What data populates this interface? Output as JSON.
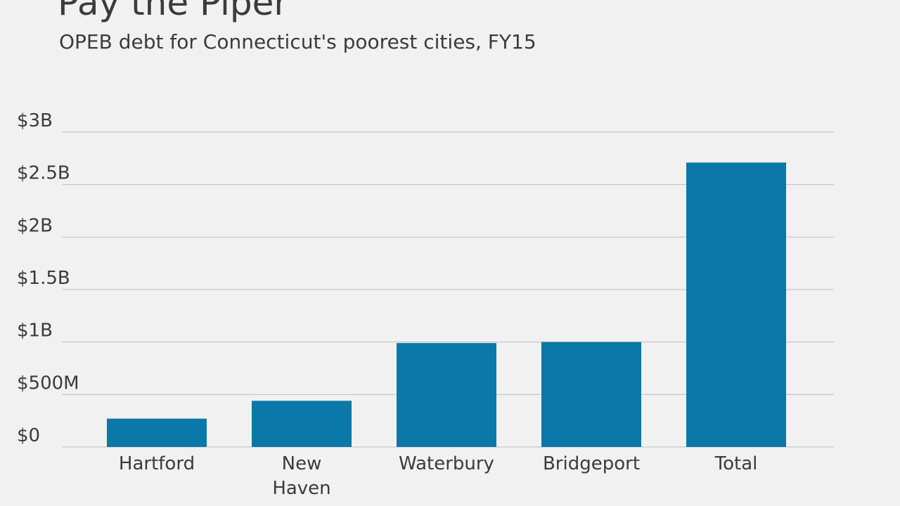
{
  "chart_data": {
    "type": "bar",
    "title": "Pay the Piper",
    "subtitle": "OPEB debt for Connecticut's poorest cities, FY15",
    "categories": [
      "Hartford",
      "New Haven",
      "Waterbury",
      "Bridgeport",
      "Total"
    ],
    "category_lines": [
      [
        "Hartford"
      ],
      [
        "New",
        "Haven"
      ],
      [
        "Waterbury"
      ],
      [
        "Bridgeport"
      ],
      [
        "Total"
      ]
    ],
    "values": [
      0.27,
      0.44,
      0.99,
      1.0,
      2.71
    ],
    "value_unit": "billion USD",
    "ylim": [
      0,
      3
    ],
    "yticks": [
      0,
      0.5,
      1,
      1.5,
      2,
      2.5,
      3
    ],
    "ytick_labels": [
      "$0",
      "$500M",
      "$1B",
      "$1.5B",
      "$2B",
      "$2.5B",
      "$3B"
    ],
    "xlabel": "",
    "ylabel": "",
    "grid": true,
    "legend": "none",
    "bar_color": "#0a78a8"
  }
}
